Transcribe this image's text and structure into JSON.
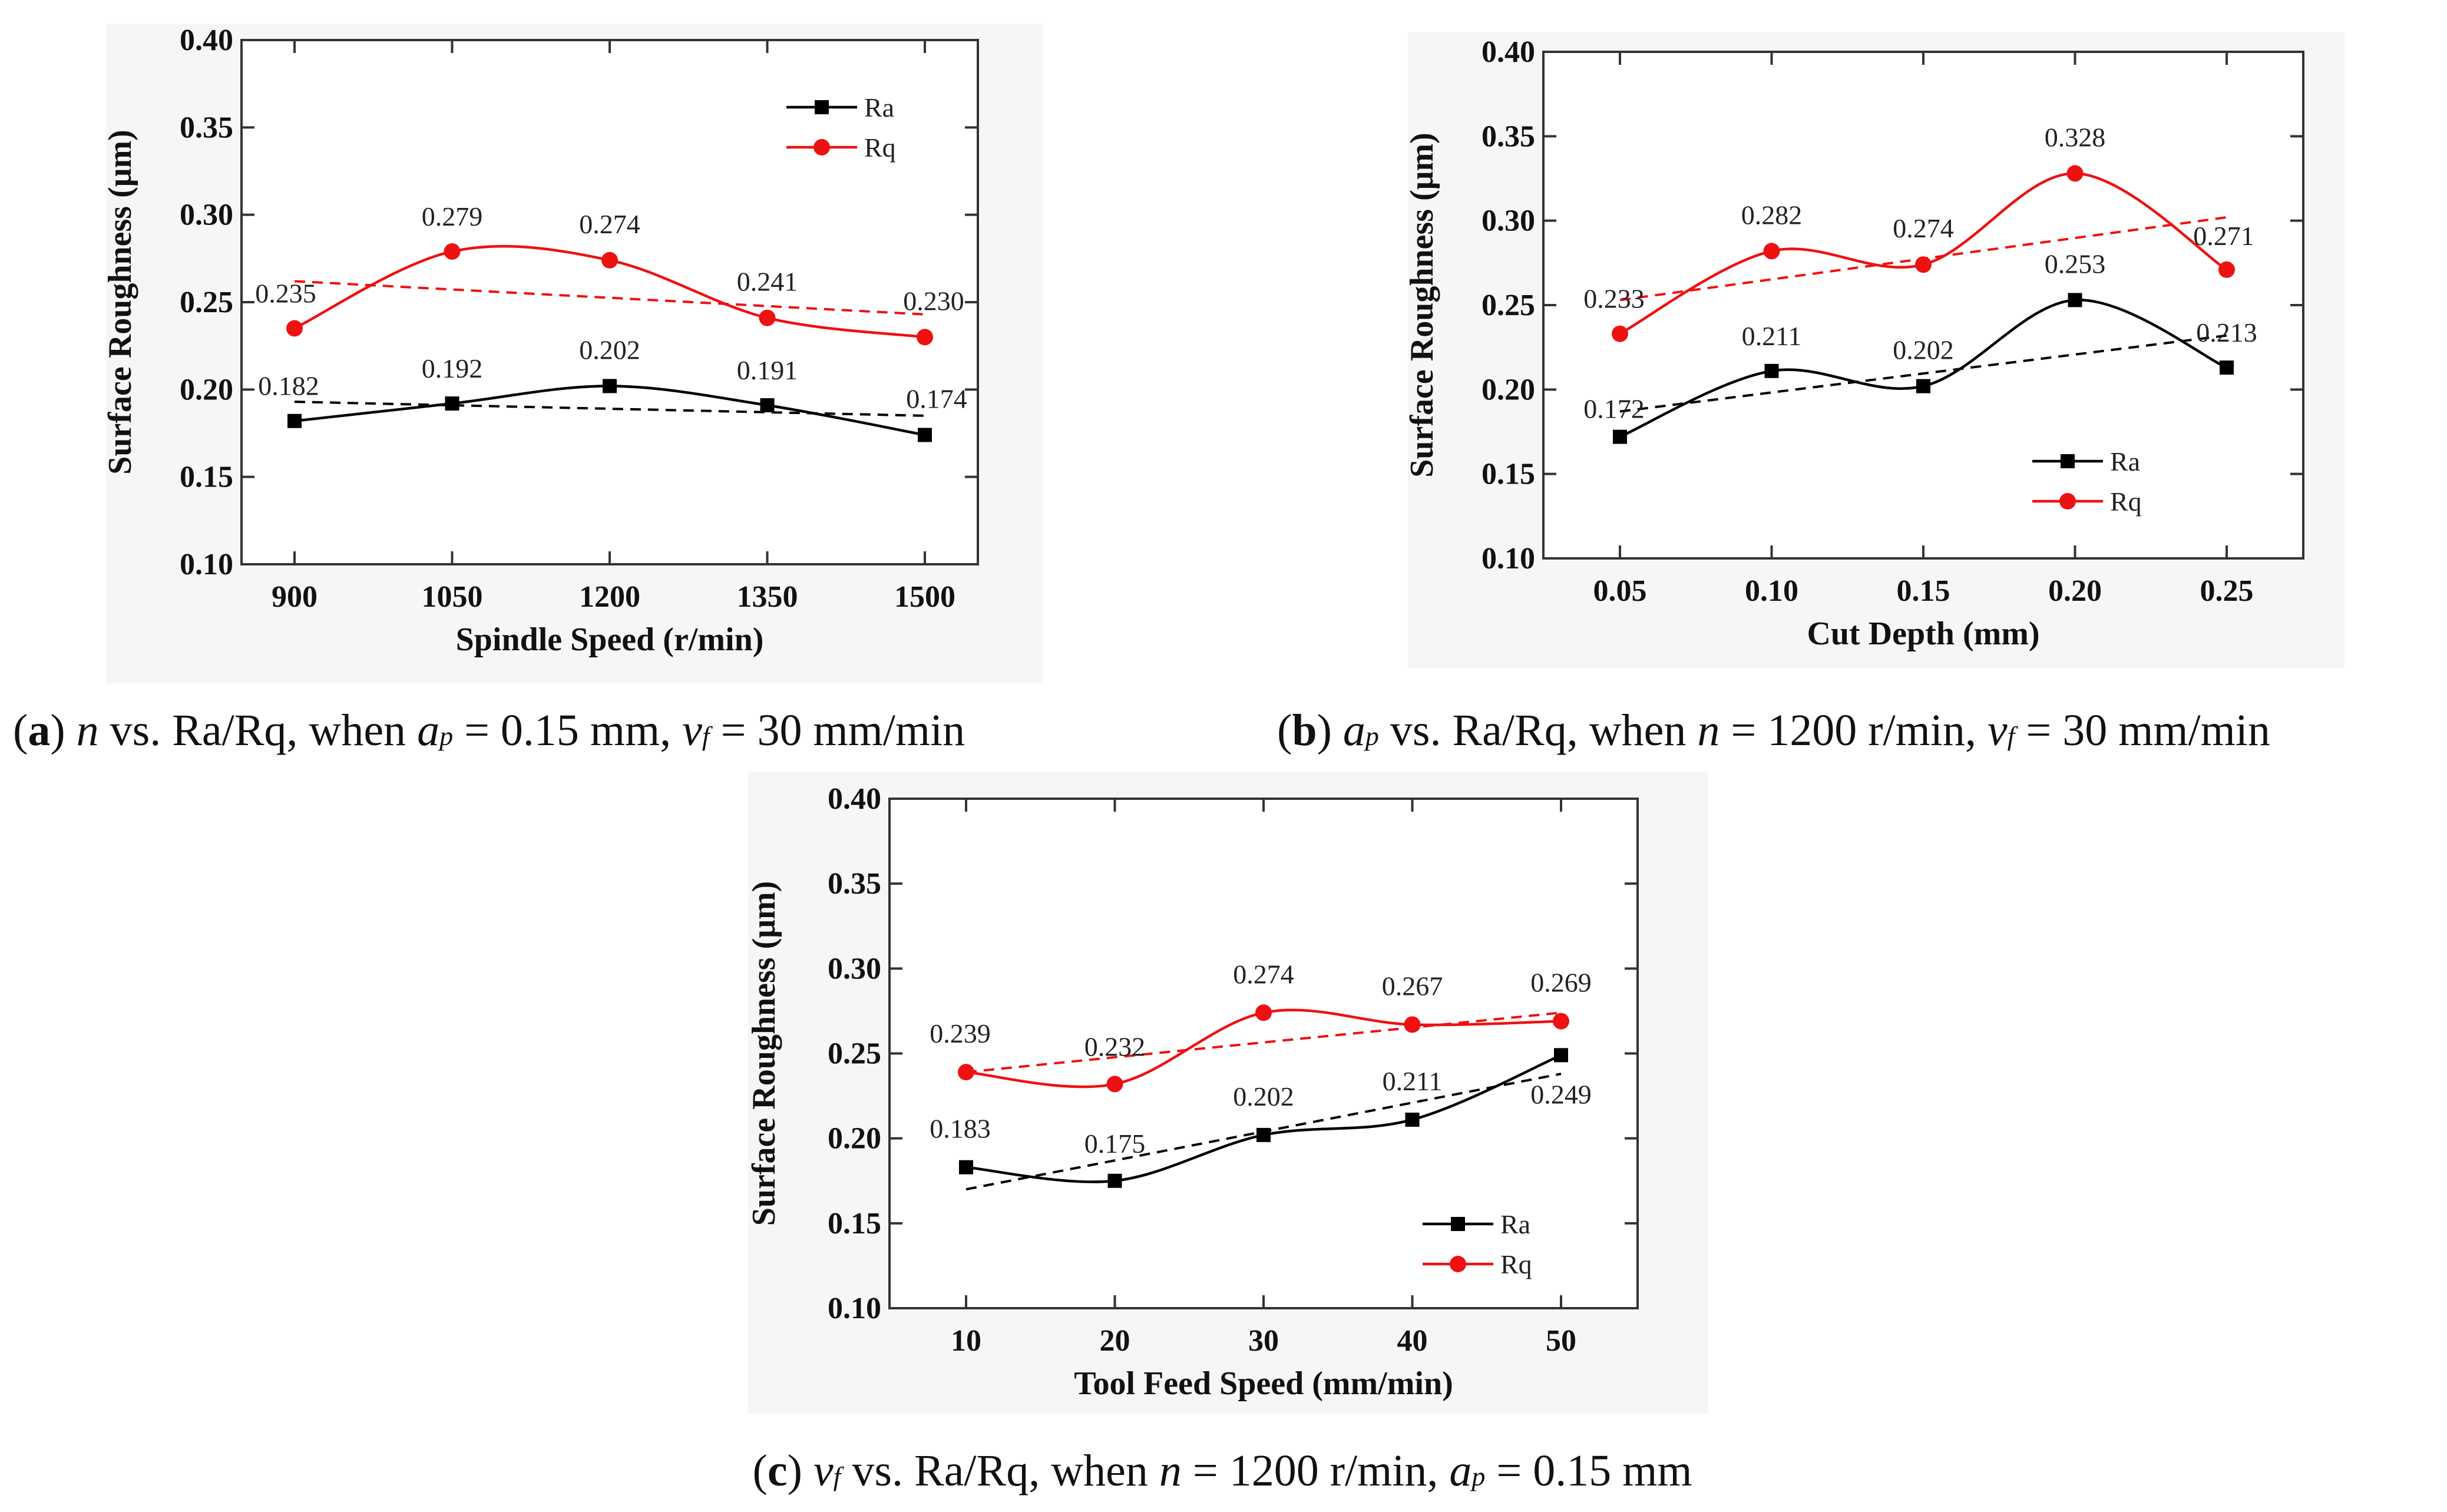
{
  "figure": {
    "captions": [
      {
        "letter": "a",
        "pre": "(",
        "close": ")",
        "runs": [
          {
            "t": " ",
            "s": "n"
          },
          {
            "t": "n",
            "s": "i"
          },
          {
            "t": " vs. Ra/Rq, when ",
            "s": "n"
          },
          {
            "t": "a",
            "s": "i"
          },
          {
            "t": "p",
            "s": "sub"
          },
          {
            "t": " = 0.15 mm, ",
            "s": "n"
          },
          {
            "t": "v",
            "s": "i"
          },
          {
            "t": "f",
            "s": "sub"
          },
          {
            "t": " = 30 mm/min",
            "s": "n"
          }
        ]
      },
      {
        "letter": "b",
        "pre": "(",
        "close": ")",
        "runs": [
          {
            "t": " ",
            "s": "n"
          },
          {
            "t": "a",
            "s": "i"
          },
          {
            "t": "p",
            "s": "sub"
          },
          {
            "t": " vs. Ra/Rq, when ",
            "s": "n"
          },
          {
            "t": "n",
            "s": "i"
          },
          {
            "t": " = 1200 r/min, ",
            "s": "n"
          },
          {
            "t": "v",
            "s": "i"
          },
          {
            "t": "f",
            "s": "sub"
          },
          {
            "t": " = 30 mm/min",
            "s": "n"
          }
        ]
      },
      {
        "letter": "c",
        "pre": "(",
        "close": ")",
        "runs": [
          {
            "t": " ",
            "s": "n"
          },
          {
            "t": "v",
            "s": "i"
          },
          {
            "t": "f",
            "s": "sub"
          },
          {
            "t": " vs. Ra/Rq, when ",
            "s": "n"
          },
          {
            "t": "n",
            "s": "i"
          },
          {
            "t": " = 1200 r/min, ",
            "s": "n"
          },
          {
            "t": "a",
            "s": "i"
          },
          {
            "t": "p",
            "s": "sub"
          },
          {
            "t": " = 0.15 mm",
            "s": "n"
          }
        ]
      }
    ]
  },
  "colors": {
    "ra": "#000000",
    "rq": "#ee1111"
  },
  "chart_data": [
    {
      "id": "a",
      "type": "line",
      "xlabel": "Spindle Speed (r/min)",
      "ylabel": "Surface Roughness (μm)",
      "categories": [
        "900",
        "1050",
        "1200",
        "1350",
        "1500"
      ],
      "ylim": [
        0.1,
        0.4
      ],
      "yticks": [
        "0.10",
        "0.15",
        "0.20",
        "0.25",
        "0.30",
        "0.35",
        "0.40"
      ],
      "legend": "top-right",
      "series": [
        {
          "name": "Ra",
          "marker": "square",
          "values": [
            0.182,
            0.192,
            0.202,
            0.191,
            0.174
          ],
          "labels": [
            "0.182",
            "0.192",
            "0.202",
            "0.191",
            "0.174"
          ],
          "trend": [
            0.193,
            0.185
          ]
        },
        {
          "name": "Rq",
          "marker": "circle",
          "values": [
            0.235,
            0.279,
            0.274,
            0.241,
            0.23
          ],
          "labels": [
            "0.235",
            "0.279",
            "0.274",
            "0.241",
            "0.230"
          ],
          "trend": [
            0.262,
            0.243
          ]
        }
      ]
    },
    {
      "id": "b",
      "type": "line",
      "xlabel": "Cut Depth (mm)",
      "ylabel": "Surface Roughness (μm)",
      "categories": [
        "0.05",
        "0.10",
        "0.15",
        "0.20",
        "0.25"
      ],
      "ylim": [
        0.1,
        0.4
      ],
      "yticks": [
        "0.10",
        "0.15",
        "0.20",
        "0.25",
        "0.30",
        "0.35",
        "0.40"
      ],
      "legend": "bottom-right",
      "series": [
        {
          "name": "Ra",
          "marker": "square",
          "values": [
            0.172,
            0.211,
            0.202,
            0.253,
            0.213
          ],
          "labels": [
            "0.172",
            "0.211",
            "0.202",
            "0.253",
            "0.213"
          ],
          "trend": [
            0.187,
            0.232
          ]
        },
        {
          "name": "Rq",
          "marker": "circle",
          "values": [
            0.233,
            0.282,
            0.274,
            0.328,
            0.271
          ],
          "labels": [
            "0.233",
            "0.282",
            "0.274",
            "0.328",
            "0.271"
          ],
          "trend": [
            0.253,
            0.302
          ]
        }
      ]
    },
    {
      "id": "c",
      "type": "line",
      "xlabel": "Tool Feed Speed (mm/min)",
      "ylabel": "Surface Roughness (μm)",
      "categories": [
        "10",
        "20",
        "30",
        "40",
        "50"
      ],
      "ylim": [
        0.1,
        0.4
      ],
      "yticks": [
        "0.10",
        "0.15",
        "0.20",
        "0.25",
        "0.30",
        "0.35",
        "0.40"
      ],
      "legend": "bottom-right",
      "series": [
        {
          "name": "Ra",
          "marker": "square",
          "values": [
            0.183,
            0.175,
            0.202,
            0.211,
            0.249
          ],
          "labels": [
            "0.183",
            "0.175",
            "0.202",
            "0.211",
            "0.249"
          ],
          "trend": [
            0.17,
            0.238
          ]
        },
        {
          "name": "Rq",
          "marker": "circle",
          "values": [
            0.239,
            0.232,
            0.274,
            0.267,
            0.269
          ],
          "labels": [
            "0.239",
            "0.232",
            "0.274",
            "0.267",
            "0.269"
          ],
          "trend": [
            0.239,
            0.274
          ]
        }
      ]
    }
  ]
}
